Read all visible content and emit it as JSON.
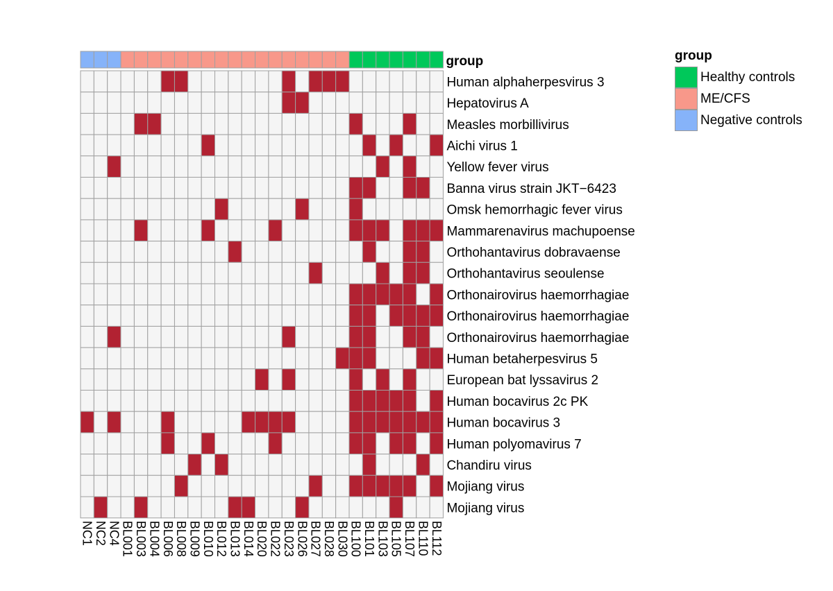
{
  "chart_data": {
    "type": "heatmap",
    "columns": [
      "NC1",
      "NC2",
      "NC4",
      "BL001",
      "BL003",
      "BL004",
      "BL006",
      "BL008",
      "BL009",
      "BL010",
      "BL012",
      "BL013",
      "BL014",
      "BL020",
      "BL022",
      "BL023",
      "BL026",
      "BL027",
      "BL028",
      "BL030",
      "BL100",
      "BL101",
      "BL103",
      "BL105",
      "BL107",
      "BL110",
      "BL112"
    ],
    "rows": [
      "Human alphaherpesvirus 3",
      "Hepatovirus A",
      "Measles morbillivirus",
      "Aichi virus 1",
      "Yellow fever virus",
      "Banna virus strain JKT−6423",
      "Omsk hemorrhagic fever virus",
      "Mammarenavirus machupoense",
      "Orthohantavirus dobravaense",
      "Orthohantavirus seoulense",
      "Orthonairovirus haemorrhagiae",
      "Orthonairovirus haemorrhagiae",
      "Orthonairovirus haemorrhagiae",
      "Human betaherpesvirus 5",
      "European bat lyssavirus 2",
      "Human bocavirus 2c PK",
      "Human bocavirus 3",
      "Human polyomavirus 7",
      "Chandiru virus",
      "Mojiang virus",
      "Mojiang virus"
    ],
    "column_groups": [
      "Negative controls",
      "Negative controls",
      "Negative controls",
      "ME/CFS",
      "ME/CFS",
      "ME/CFS",
      "ME/CFS",
      "ME/CFS",
      "ME/CFS",
      "ME/CFS",
      "ME/CFS",
      "ME/CFS",
      "ME/CFS",
      "ME/CFS",
      "ME/CFS",
      "ME/CFS",
      "ME/CFS",
      "ME/CFS",
      "ME/CFS",
      "ME/CFS",
      "Healthy controls",
      "Healthy controls",
      "Healthy controls",
      "Healthy controls",
      "Healthy controls",
      "Healthy controls",
      "Healthy controls"
    ],
    "annotation_label": "group",
    "legend": {
      "title": "group",
      "items": [
        {
          "label": "Healthy controls",
          "color": "#00c85a"
        },
        {
          "label": "ME/CFS",
          "color": "#f8988a"
        },
        {
          "label": "Negative controls",
          "color": "#86b3f9"
        }
      ]
    },
    "colors": {
      "present": "#b22232",
      "absent": "#f5f5f5",
      "grid": "#a0a0a0"
    },
    "matrix": [
      [
        0,
        0,
        0,
        0,
        0,
        0,
        1,
        1,
        0,
        0,
        0,
        0,
        0,
        0,
        0,
        1,
        0,
        1,
        1,
        1,
        0,
        0,
        0,
        0,
        0,
        0,
        0
      ],
      [
        0,
        0,
        0,
        0,
        0,
        0,
        0,
        0,
        0,
        0,
        0,
        0,
        0,
        0,
        0,
        1,
        1,
        0,
        0,
        0,
        0,
        0,
        0,
        0,
        0,
        0,
        0
      ],
      [
        0,
        0,
        0,
        0,
        1,
        1,
        0,
        0,
        0,
        0,
        0,
        0,
        0,
        0,
        0,
        0,
        0,
        0,
        0,
        0,
        1,
        0,
        0,
        0,
        1,
        0,
        0
      ],
      [
        0,
        0,
        0,
        0,
        0,
        0,
        0,
        0,
        0,
        1,
        0,
        0,
        0,
        0,
        0,
        0,
        0,
        0,
        0,
        0,
        0,
        1,
        0,
        1,
        0,
        0,
        1
      ],
      [
        0,
        0,
        1,
        0,
        0,
        0,
        0,
        0,
        0,
        0,
        0,
        0,
        0,
        0,
        0,
        0,
        0,
        0,
        0,
        0,
        0,
        0,
        1,
        0,
        1,
        0,
        0
      ],
      [
        0,
        0,
        0,
        0,
        0,
        0,
        0,
        0,
        0,
        0,
        0,
        0,
        0,
        0,
        0,
        0,
        0,
        0,
        0,
        0,
        1,
        1,
        0,
        0,
        1,
        1,
        0
      ],
      [
        0,
        0,
        0,
        0,
        0,
        0,
        0,
        0,
        0,
        0,
        1,
        0,
        0,
        0,
        0,
        0,
        1,
        0,
        0,
        0,
        1,
        0,
        0,
        0,
        0,
        0,
        0
      ],
      [
        0,
        0,
        0,
        0,
        1,
        0,
        0,
        0,
        0,
        1,
        0,
        0,
        0,
        0,
        1,
        0,
        0,
        0,
        0,
        0,
        1,
        1,
        1,
        0,
        1,
        1,
        1
      ],
      [
        0,
        0,
        0,
        0,
        0,
        0,
        0,
        0,
        0,
        0,
        0,
        1,
        0,
        0,
        0,
        0,
        0,
        0,
        0,
        0,
        0,
        1,
        0,
        0,
        1,
        1,
        0
      ],
      [
        0,
        0,
        0,
        0,
        0,
        0,
        0,
        0,
        0,
        0,
        0,
        0,
        0,
        0,
        0,
        0,
        0,
        1,
        0,
        0,
        0,
        0,
        1,
        0,
        1,
        1,
        0
      ],
      [
        0,
        0,
        0,
        0,
        0,
        0,
        0,
        0,
        0,
        0,
        0,
        0,
        0,
        0,
        0,
        0,
        0,
        0,
        0,
        0,
        1,
        1,
        1,
        1,
        1,
        0,
        1
      ],
      [
        0,
        0,
        0,
        0,
        0,
        0,
        0,
        0,
        0,
        0,
        0,
        0,
        0,
        0,
        0,
        0,
        0,
        0,
        0,
        0,
        1,
        1,
        0,
        1,
        1,
        1,
        1
      ],
      [
        0,
        0,
        1,
        0,
        0,
        0,
        0,
        0,
        0,
        0,
        0,
        0,
        0,
        0,
        0,
        1,
        0,
        0,
        0,
        0,
        1,
        1,
        0,
        0,
        1,
        1,
        0
      ],
      [
        0,
        0,
        0,
        0,
        0,
        0,
        0,
        0,
        0,
        0,
        0,
        0,
        0,
        0,
        0,
        0,
        0,
        0,
        0,
        1,
        1,
        1,
        0,
        0,
        0,
        1,
        1
      ],
      [
        0,
        0,
        0,
        0,
        0,
        0,
        0,
        0,
        0,
        0,
        0,
        0,
        0,
        1,
        0,
        1,
        0,
        0,
        0,
        0,
        1,
        0,
        1,
        0,
        1,
        0,
        0
      ],
      [
        0,
        0,
        0,
        0,
        0,
        0,
        0,
        0,
        0,
        0,
        0,
        0,
        0,
        0,
        0,
        0,
        0,
        0,
        0,
        0,
        1,
        1,
        1,
        1,
        1,
        0,
        1
      ],
      [
        1,
        0,
        1,
        0,
        0,
        0,
        1,
        0,
        0,
        0,
        0,
        0,
        1,
        1,
        1,
        1,
        0,
        0,
        0,
        0,
        1,
        1,
        1,
        1,
        1,
        1,
        1
      ],
      [
        0,
        0,
        0,
        0,
        0,
        0,
        1,
        0,
        0,
        1,
        0,
        0,
        0,
        0,
        1,
        0,
        0,
        0,
        0,
        0,
        1,
        1,
        0,
        1,
        1,
        0,
        1
      ],
      [
        0,
        0,
        0,
        0,
        0,
        0,
        0,
        0,
        1,
        0,
        1,
        0,
        0,
        0,
        0,
        0,
        0,
        0,
        0,
        0,
        0,
        1,
        0,
        0,
        0,
        1,
        0
      ],
      [
        0,
        0,
        0,
        0,
        0,
        0,
        0,
        1,
        0,
        0,
        0,
        0,
        0,
        0,
        0,
        0,
        0,
        1,
        0,
        0,
        1,
        1,
        1,
        1,
        1,
        0,
        1
      ],
      [
        0,
        1,
        0,
        0,
        1,
        0,
        0,
        0,
        0,
        0,
        0,
        1,
        1,
        0,
        0,
        0,
        1,
        0,
        0,
        0,
        0,
        0,
        0,
        1,
        0,
        0,
        0
      ]
    ]
  }
}
